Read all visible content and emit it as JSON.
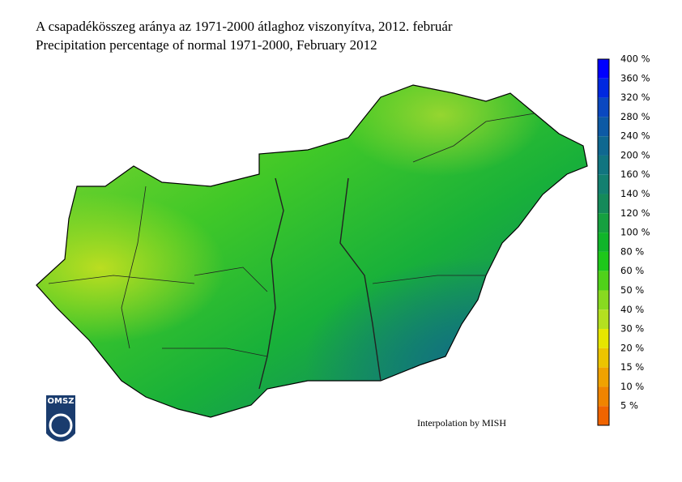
{
  "header": {
    "title": "A csapadékösszeg aránya az 1971-2000 átlaghoz viszonyítva, 2012. február",
    "subtitle": "Precipitation percentage of normal 1971-2000, February 2012"
  },
  "legend": {
    "entries": [
      {
        "label": "400 %",
        "color": "#0000ff"
      },
      {
        "label": "360 %",
        "color": "#0028e0"
      },
      {
        "label": "320 %",
        "color": "#0a48c0"
      },
      {
        "label": "280 %",
        "color": "#0d5aa5"
      },
      {
        "label": "240 %",
        "color": "#0f6890"
      },
      {
        "label": "200 %",
        "color": "#117580"
      },
      {
        "label": "160 %",
        "color": "#138070"
      },
      {
        "label": "140 %",
        "color": "#158a5a"
      },
      {
        "label": "120 %",
        "color": "#16a040"
      },
      {
        "label": "100 %",
        "color": "#10b52a"
      },
      {
        "label": "80 %",
        "color": "#1ec81a"
      },
      {
        "label": "60 %",
        "color": "#50d21a"
      },
      {
        "label": "50 %",
        "color": "#88da20"
      },
      {
        "label": "40 %",
        "color": "#b4e020"
      },
      {
        "label": "30 %",
        "color": "#e6e600"
      },
      {
        "label": "20 %",
        "color": "#ecc400"
      },
      {
        "label": "15 %",
        "color": "#f0a200"
      },
      {
        "label": "10 %",
        "color": "#f08400"
      },
      {
        "label": "5 %",
        "color": "#f06400"
      }
    ]
  },
  "credit": "Interpolation by MISH",
  "logo": "OMSZ"
}
